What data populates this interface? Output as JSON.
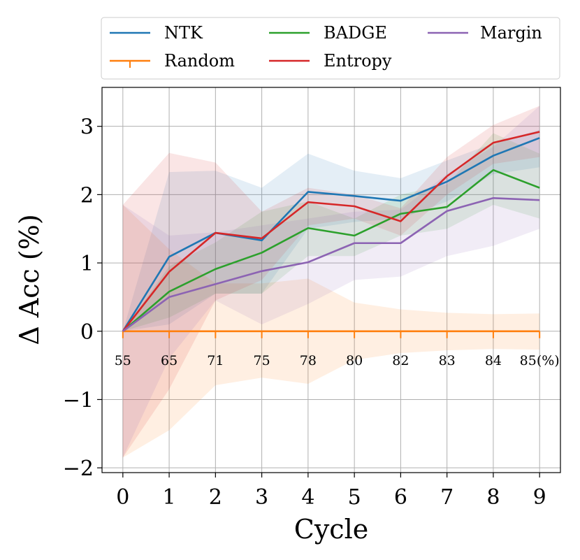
{
  "chart_data": {
    "type": "line",
    "xlabel": "Cycle",
    "ylabel": "Δ Acc (%)",
    "x": [
      0,
      1,
      2,
      3,
      4,
      5,
      6,
      7,
      8,
      9
    ],
    "xlim": [
      -0.45,
      9.45
    ],
    "ylim": [
      -2.07,
      3.57
    ],
    "yticks": [
      -2,
      -1,
      0,
      1,
      2,
      3
    ],
    "ytick_labels": [
      "−2",
      "−1",
      "0",
      "1",
      "2",
      "3"
    ],
    "grid": true,
    "accuracy_labels": [
      "55",
      "65",
      "71",
      "75",
      "78",
      "80",
      "82",
      "83",
      "84",
      "85(%)"
    ],
    "legend": {
      "placement": "top",
      "columns": 3
    },
    "series": [
      {
        "name": "NTK",
        "color": "#1f77b4",
        "values": [
          0,
          1.09,
          1.44,
          1.33,
          2.04,
          1.98,
          1.91,
          2.19,
          2.57,
          2.83
        ],
        "upper": [
          0,
          2.33,
          2.35,
          2.1,
          2.6,
          2.35,
          2.24,
          2.5,
          2.75,
          2.95
        ],
        "lower": [
          0,
          0.1,
          0.55,
          0.55,
          1.5,
          1.6,
          1.65,
          1.9,
          2.3,
          2.4
        ]
      },
      {
        "name": "Random",
        "color": "#ff7f0e",
        "values": [
          0,
          0,
          0,
          0,
          0,
          0,
          0,
          0,
          0,
          0
        ],
        "upper": [
          1.85,
          1.2,
          0.7,
          0.7,
          0.77,
          0.42,
          0.32,
          0.27,
          0.25,
          0.26
        ],
        "lower": [
          -1.85,
          -1.45,
          -0.79,
          -0.68,
          -0.77,
          -0.42,
          -0.32,
          -0.28,
          -0.26,
          -0.27
        ]
      },
      {
        "name": "BADGE",
        "color": "#2ca02c",
        "values": [
          0,
          0.58,
          0.91,
          1.15,
          1.51,
          1.4,
          1.72,
          1.82,
          2.36,
          2.1
        ],
        "upper": [
          0,
          0.95,
          1.3,
          1.75,
          1.9,
          1.65,
          2.0,
          2.15,
          2.9,
          2.6
        ],
        "lower": [
          0,
          0.2,
          0.55,
          0.55,
          1.1,
          1.1,
          1.4,
          1.5,
          1.85,
          1.65
        ]
      },
      {
        "name": "Entropy",
        "color": "#d62728",
        "values": [
          0,
          0.87,
          1.44,
          1.36,
          1.89,
          1.83,
          1.61,
          2.27,
          2.76,
          2.92
        ],
        "upper": [
          1.85,
          2.61,
          2.47,
          1.75,
          2.1,
          2.0,
          1.8,
          2.55,
          3.02,
          3.3
        ],
        "lower": [
          -1.85,
          -0.85,
          0.45,
          0.75,
          1.55,
          1.65,
          1.4,
          2.0,
          2.45,
          2.55
        ]
      },
      {
        "name": "Margin",
        "color": "#8c63b3",
        "values": [
          0,
          0.5,
          0.69,
          0.88,
          1.01,
          1.29,
          1.29,
          1.76,
          1.95,
          1.92
        ],
        "upper": [
          1.85,
          1.4,
          1.45,
          1.55,
          1.65,
          1.75,
          1.78,
          2.3,
          2.7,
          3.3
        ],
        "lower": [
          -1.85,
          -0.4,
          0.45,
          0.1,
          0.4,
          0.75,
          0.8,
          1.1,
          1.25,
          1.5
        ]
      }
    ]
  }
}
